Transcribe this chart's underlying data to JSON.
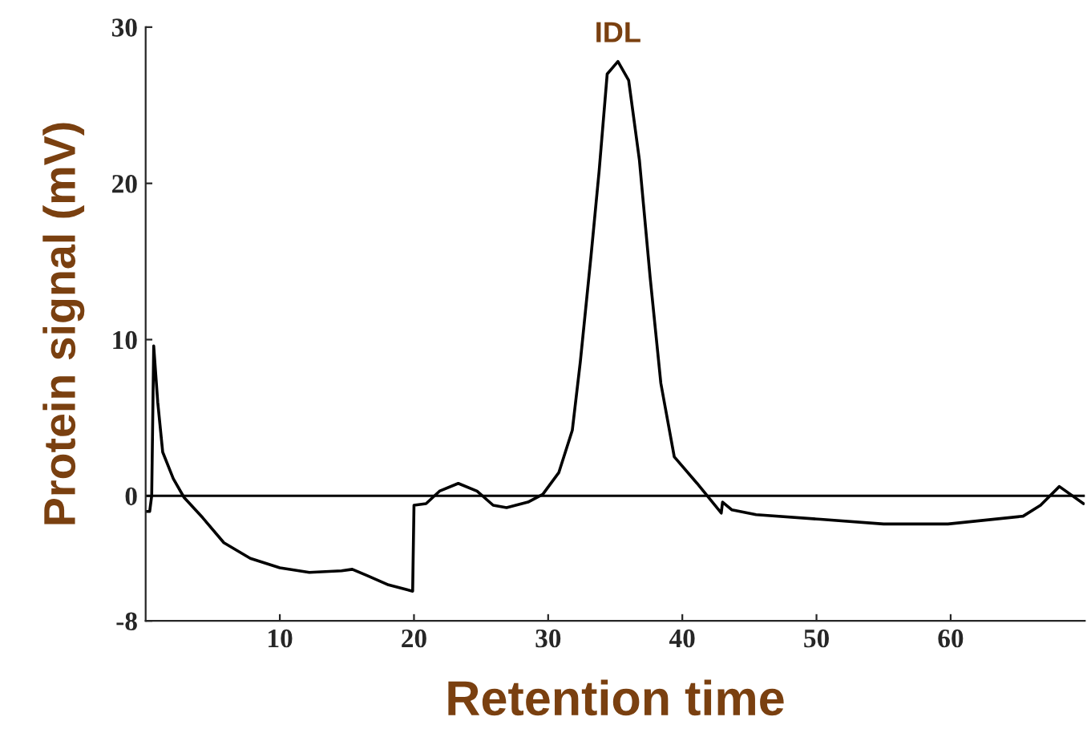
{
  "chart_data": {
    "type": "line",
    "xlabel": "Retention time",
    "ylabel": "Protein signal (mV)",
    "x": [
      0,
      0.3,
      0.45,
      0.6,
      0.9,
      1.27,
      2.06,
      2.86,
      4.25,
      5.83,
      7.8,
      10,
      12.2,
      14.6,
      15.4,
      16.5,
      18.1,
      19.9,
      20.0,
      20.9,
      21.9,
      23.3,
      24.7,
      25.9,
      26.9,
      28.5,
      29.6,
      30.8,
      31.8,
      32.4,
      33.2,
      33.8,
      34.4,
      35.2,
      36.0,
      36.8,
      37.6,
      38.4,
      39.4,
      41.1,
      42.9,
      43.0,
      43.7,
      45.5,
      50.3,
      55.0,
      59.8,
      65.4,
      66.7,
      68.1,
      69.9
    ],
    "series": [
      {
        "color": "#000000",
        "values": [
          -1,
          -1,
          0,
          9.6,
          6,
          2.8,
          1.1,
          -0.1,
          -1.4,
          -3.0,
          -4.0,
          -4.6,
          -4.9,
          -4.8,
          -4.7,
          -5.1,
          -5.7,
          -6.1,
          -0.6,
          -0.5,
          0.3,
          0.8,
          0.3,
          -0.6,
          -0.75,
          -0.4,
          0.1,
          1.5,
          4.2,
          8.6,
          15.4,
          20.8,
          27.0,
          27.8,
          26.6,
          21.5,
          14.0,
          7.2,
          2.5,
          0.8,
          -1.1,
          -0.4,
          -0.9,
          -1.2,
          -1.5,
          -1.8,
          -1.8,
          -1.3,
          -0.6,
          0.6,
          -0.5
        ]
      }
    ],
    "xlim": [
      0,
      70
    ],
    "ylim": [
      -8,
      30
    ],
    "xticks": [
      10,
      20,
      30,
      40,
      50,
      60
    ],
    "yticks": [
      -8,
      0,
      10,
      20,
      30
    ],
    "ref_lines": [
      {
        "axis": "y",
        "value": 0,
        "color": "#000000"
      }
    ],
    "annotations": [
      {
        "text": "IDL",
        "x": 35.2,
        "y": 27.8
      }
    ],
    "grid": false,
    "legend": false,
    "marker": "none",
    "line_style": "solid"
  }
}
